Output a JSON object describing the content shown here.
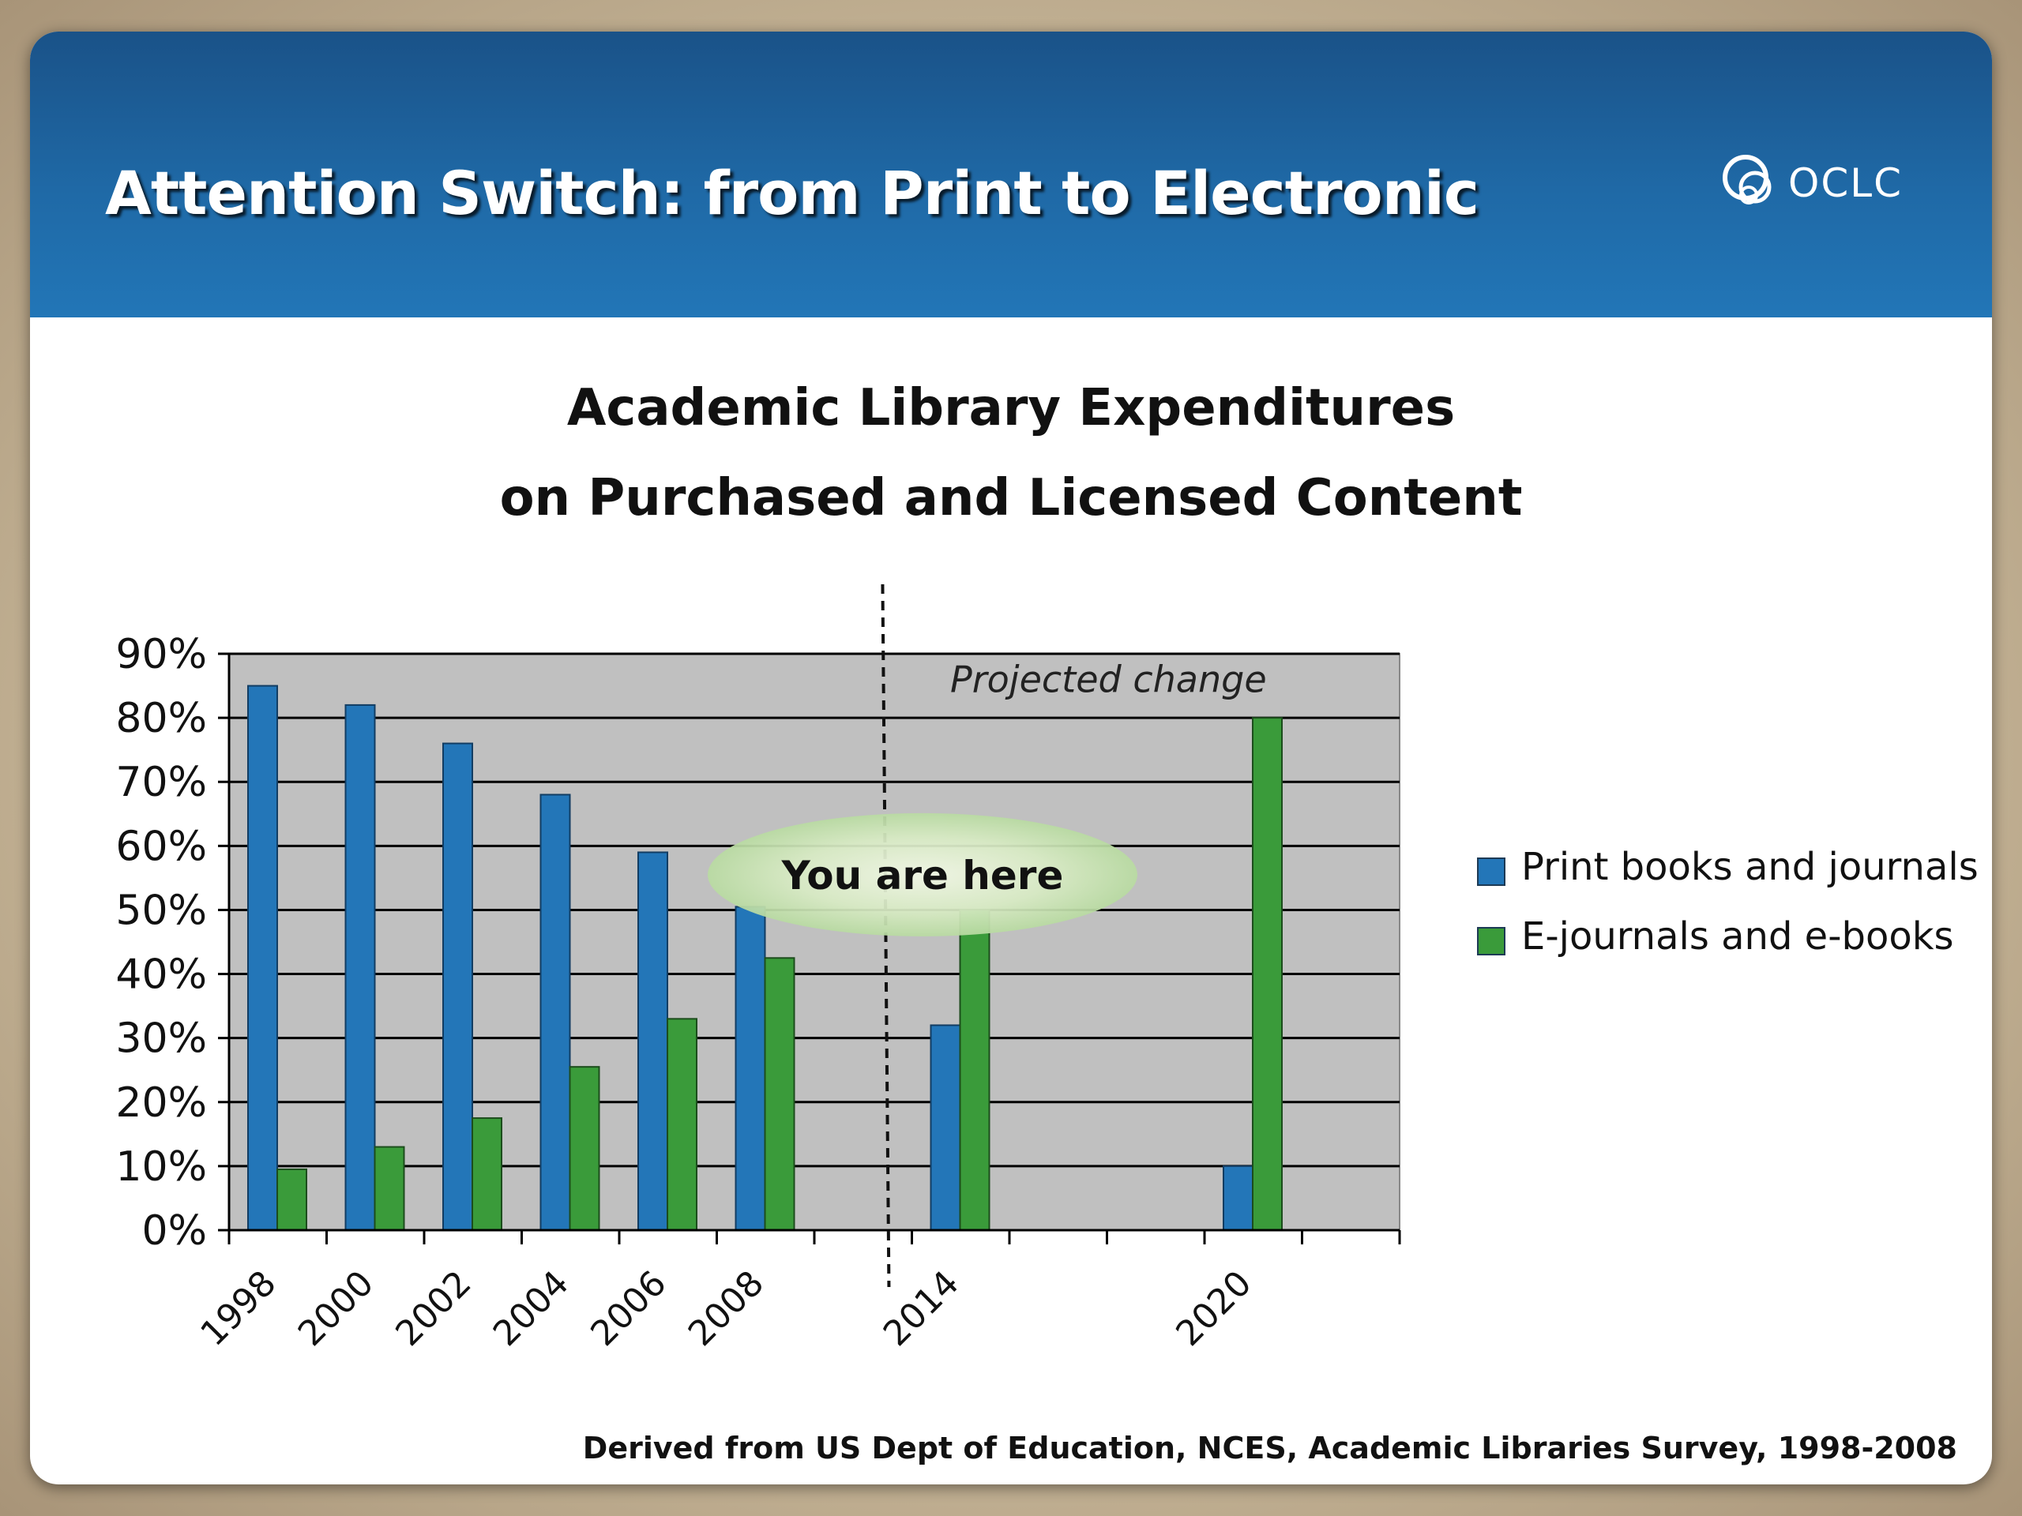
{
  "slide": {
    "title": "Attention Switch: from Print to Electronic",
    "logo_text": "OCLC",
    "source": "Derived from US Dept of Education, NCES, Academic Libraries Survey, 1998-2008"
  },
  "chart_data": {
    "type": "bar",
    "title": "Academic Library Expenditures on Purchased and Licensed Content",
    "title_lines": [
      "Academic Library Expenditures",
      "on Purchased and Licensed Content"
    ],
    "xlabel": "",
    "ylabel": "",
    "ylim": [
      0,
      0.9
    ],
    "yticks": [
      "0%",
      "10%",
      "20%",
      "30%",
      "40%",
      "50%",
      "60%",
      "70%",
      "80%",
      "90%"
    ],
    "categories": [
      "1998",
      "2000",
      "2002",
      "2004",
      "2006",
      "2008",
      "",
      "2014",
      "",
      "",
      "2020"
    ],
    "series": [
      {
        "name": "Print books and journals",
        "color": "#2376b8",
        "values": [
          0.85,
          0.82,
          0.76,
          0.68,
          0.59,
          0.505,
          null,
          0.32,
          null,
          null,
          0.1
        ]
      },
      {
        "name": "E-journals and e-books",
        "color": "#3a9b3a",
        "values": [
          0.095,
          0.13,
          0.175,
          0.255,
          0.33,
          0.425,
          null,
          0.5,
          null,
          null,
          0.8
        ]
      }
    ],
    "grid": true,
    "legend_position": "right",
    "annotations": {
      "projected": "Projected change",
      "callout": "You are here"
    },
    "background": "#c0c0c0"
  }
}
